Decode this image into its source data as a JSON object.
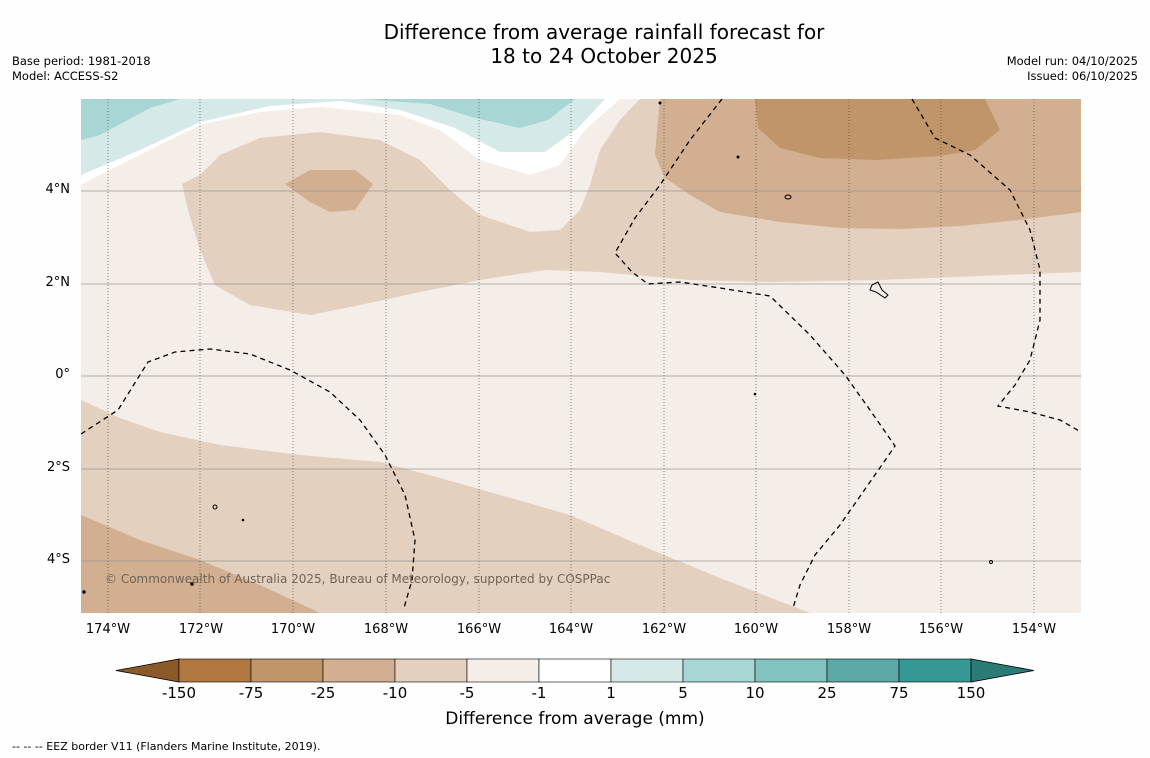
{
  "title": {
    "line1": "Difference from average rainfall forecast for",
    "line2": "18 to 24 October 2025"
  },
  "meta_left": {
    "base_period": "Base period: 1981-2018",
    "model": "Model: ACCESS-S2"
  },
  "meta_right": {
    "model_run": "Model run: 04/10/2025",
    "issued": "Issued: 06/10/2025"
  },
  "map": {
    "lat_labels": [
      "4°N",
      "2°N",
      "0°",
      "2°S",
      "4°S"
    ],
    "lon_labels": [
      "174°W",
      "172°W",
      "170°W",
      "168°W",
      "166°W",
      "164°W",
      "162°W",
      "160°W",
      "158°W",
      "156°W",
      "154°W"
    ],
    "copyright": "© Commonwealth of Australia 2025, Bureau of Meteorology, supported by COSPPac"
  },
  "colorbar": {
    "title": "Difference from average (mm)",
    "ticks": [
      "-150",
      "-75",
      "-25",
      "-10",
      "-5",
      "-1",
      "1",
      "5",
      "10",
      "25",
      "75",
      "150"
    ],
    "colors": [
      "#8c5a28",
      "#b07840",
      "#c0956a",
      "#d2af90",
      "#e3d0be",
      "#f5ede8",
      "#ffffff",
      "#d5eae8",
      "#a8d6d5",
      "#82c3c0",
      "#5caaa8",
      "#359894",
      "#2a7a76"
    ]
  },
  "legend": {
    "eez": "-- -- -- EEZ border V11 (Flanders Marine Institute, 2019)."
  }
}
